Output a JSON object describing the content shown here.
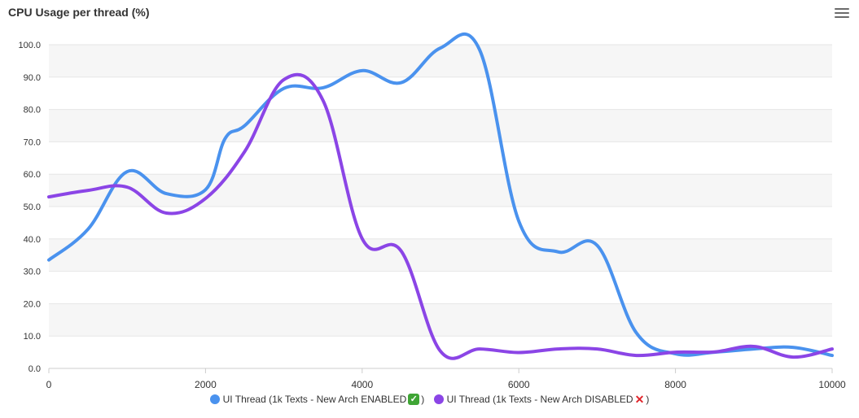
{
  "header": {
    "title": "CPU Usage per thread (%)",
    "menu_icon": "hamburger-menu-icon"
  },
  "colors": {
    "band": "#f6f6f6",
    "grid": "#e6e6e6",
    "series1": "#4a92ee",
    "series2": "#8b45e6"
  },
  "chart_data": {
    "type": "line",
    "title": "CPU Usage per thread (%)",
    "xlabel": "",
    "ylabel": "",
    "xlim": [
      0,
      10000
    ],
    "ylim": [
      0,
      100
    ],
    "x_ticks": [
      "0",
      "2000",
      "4000",
      "6000",
      "8000",
      "10000"
    ],
    "y_ticks": [
      "0.0",
      "10.0",
      "20.0",
      "30.0",
      "40.0",
      "50.0",
      "60.0",
      "70.0",
      "80.0",
      "90.0",
      "100.0"
    ],
    "legend_position": "bottom",
    "series": [
      {
        "name": "UI Thread (1k Texts - New Arch ENABLED",
        "suffix": ")",
        "emoji": "check-mark-button-emoji",
        "color": "#4a92ee",
        "x": [
          0,
          500,
          1000,
          1500,
          2000,
          2250,
          2500,
          3000,
          3500,
          4000,
          4500,
          5000,
          5500,
          6000,
          6500,
          7000,
          7500,
          8000,
          8500,
          9000,
          9500,
          10000
        ],
        "y": [
          33.5,
          43,
          60.8,
          54,
          55.2,
          71,
          75,
          86.5,
          86.7,
          92,
          88.3,
          99,
          98.4,
          45.5,
          36,
          38,
          11,
          4.5,
          5,
          6,
          6.5,
          4
        ]
      },
      {
        "name": "UI Thread (1k Texts - New Arch DISABLED",
        "suffix": ")",
        "emoji": "cross-mark-emoji",
        "color": "#8b45e6",
        "x": [
          0,
          500,
          1000,
          1500,
          2000,
          2500,
          3000,
          3500,
          4000,
          4500,
          5000,
          5500,
          6000,
          6500,
          7000,
          7500,
          8000,
          8500,
          9000,
          9500,
          10000
        ],
        "y": [
          53,
          55,
          56,
          48,
          52.5,
          67,
          89.2,
          82.8,
          40.1,
          36.2,
          5.3,
          6,
          4.9,
          6,
          6,
          4,
          5,
          5.1,
          6.8,
          3.5,
          6
        ]
      }
    ]
  }
}
